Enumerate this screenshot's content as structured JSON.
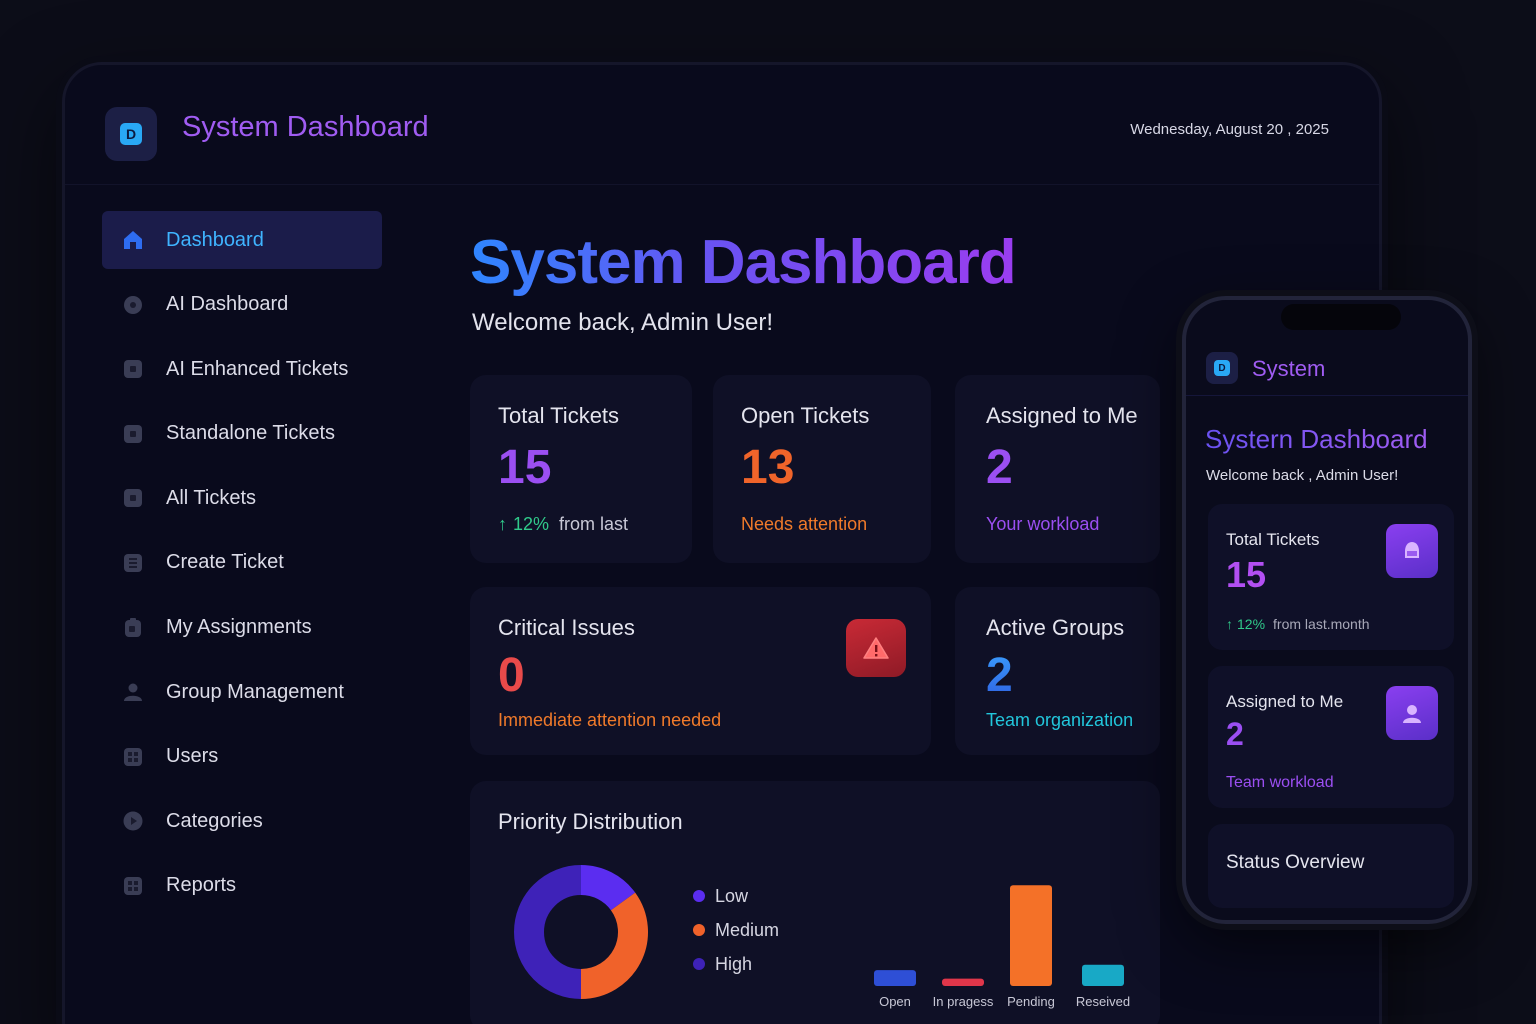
{
  "app": {
    "title": "System Dashboard",
    "logo_letter": "D",
    "date": "Wednesday, August  20 , 2025"
  },
  "sidebar": {
    "items": [
      {
        "label": "Dashboard",
        "icon": "home-icon",
        "active": true
      },
      {
        "label": "AI Dashboard",
        "icon": "circle-icon"
      },
      {
        "label": "AI Enhanced Tickets",
        "icon": "ticket-icon"
      },
      {
        "label": "Standalone Tickets",
        "icon": "ticket-icon"
      },
      {
        "label": "All Tickets",
        "icon": "list-icon"
      },
      {
        "label": "Create Ticket",
        "icon": "create-icon"
      },
      {
        "label": "My Assignments",
        "icon": "clipboard-icon"
      },
      {
        "label": "Group Management",
        "icon": "user-icon"
      },
      {
        "label": "Users",
        "icon": "grid-icon"
      },
      {
        "label": "Categories",
        "icon": "play-icon"
      },
      {
        "label": "Reports",
        "icon": "grid-icon"
      }
    ]
  },
  "main": {
    "title": "System Dashboard",
    "welcome": "Welcome back, Admin User!",
    "cards": {
      "total": {
        "label": "Total Tickets",
        "value": "15",
        "trend": "12%",
        "trend_text": "from last"
      },
      "open": {
        "label": "Open Tickets",
        "value": "13",
        "foot": "Needs attention"
      },
      "assigned": {
        "label": "Assigned to Me",
        "value": "2",
        "foot": "Your workload"
      },
      "critical": {
        "label": "Critical Issues",
        "value": "0",
        "foot": "Immediate attention needed"
      },
      "groups": {
        "label": "Active Groups",
        "value": "2",
        "foot": "Team organization"
      }
    },
    "priority": {
      "title": "Priority Distribution"
    }
  },
  "chart_data": [
    {
      "type": "pie",
      "categories": [
        "Low",
        "Medium",
        "High"
      ],
      "values": [
        15,
        35,
        50
      ],
      "colors": [
        "#5b2df0",
        "#f0622a",
        "#3e22b8"
      ],
      "legend_position": "right"
    },
    {
      "type": "bar",
      "categories": [
        "Open",
        "In pragess",
        "Pending",
        "Reseived"
      ],
      "values": [
        1.5,
        0.7,
        9.5,
        2
      ],
      "colors": [
        "#2e4fd6",
        "#e0364a",
        "#f47128",
        "#18a9c6"
      ],
      "ylim": [
        0,
        10
      ]
    }
  ],
  "colors": {
    "accent_purple": "#9b4ff2",
    "accent_blue": "#2f86ff",
    "orange": "#f07a2a",
    "red": "#e84a4a",
    "green": "#30c98a",
    "cyan": "#22c7dc"
  },
  "phone": {
    "title": "System",
    "logo_letter": "D",
    "dash_title": "Systern Dashboard",
    "welcome": "Welcome back , Admin User!",
    "total": {
      "label": "Total Tickets",
      "value": "15",
      "trend": "12%",
      "trend_text": "from last.month"
    },
    "assigned": {
      "label": "Assigned to Me",
      "value": "2",
      "foot": "Team workload"
    },
    "status": {
      "label": "Status Overview"
    }
  }
}
